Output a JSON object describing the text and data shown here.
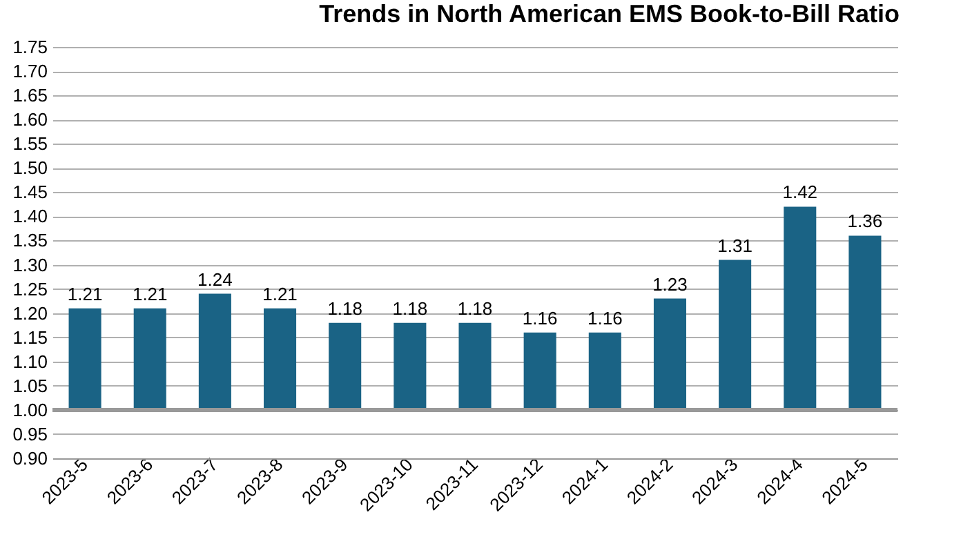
{
  "chart_data": {
    "type": "bar",
    "title": "Trends in North American EMS Book-to-Bill Ratio",
    "categories": [
      "2023-5",
      "2023-6",
      "2023-7",
      "2023-8",
      "2023-9",
      "2023-10",
      "2023-11",
      "2023-12",
      "2024-1",
      "2024-2",
      "2024-3",
      "2024-4",
      "2024-5"
    ],
    "base": [
      1,
      1,
      1,
      1,
      1,
      1,
      1,
      1,
      1,
      1,
      1,
      1,
      1
    ],
    "values": [
      0.21,
      0.21,
      0.24,
      0.21,
      0.18,
      0.18,
      0.18,
      0.16,
      0.16,
      0.23,
      0.31,
      0.42,
      0.36
    ],
    "value_labels": [
      "1.21",
      "1.21",
      "1.24",
      "1.21",
      "1.18",
      "1.18",
      "1.18",
      "1.16",
      "1.16",
      "1.23",
      "1.31",
      "1.42",
      "1.36"
    ],
    "color": "#1a6385",
    "ylim": [
      0.9,
      1.75
    ],
    "yticks": [
      {
        "value": 0.9,
        "label": "0.90"
      },
      {
        "value": 0.95,
        "label": "0.95"
      },
      {
        "value": 1.0,
        "label": "1.00"
      },
      {
        "value": 1.05,
        "label": "1.05"
      },
      {
        "value": 1.1,
        "label": "1.10"
      },
      {
        "value": 1.15,
        "label": "1.15"
      },
      {
        "value": 1.2,
        "label": "1.20"
      },
      {
        "value": 1.25,
        "label": "1.25"
      },
      {
        "value": 1.3,
        "label": "1.30"
      },
      {
        "value": 1.35,
        "label": "1.35"
      },
      {
        "value": 1.4,
        "label": "1.40"
      },
      {
        "value": 1.45,
        "label": "1.45"
      },
      {
        "value": 1.5,
        "label": "1.50"
      },
      {
        "value": 1.55,
        "label": "1.55"
      },
      {
        "value": 1.6,
        "label": "1.60"
      },
      {
        "value": 1.65,
        "label": "1.65"
      },
      {
        "value": 1.7,
        "label": "1.70"
      },
      {
        "value": 1.75,
        "label": "1.75"
      }
    ],
    "grid": "y",
    "ref_lines": [
      {
        "axis": "y",
        "value": 1.0,
        "label": null,
        "color": "#999999"
      }
    ]
  }
}
